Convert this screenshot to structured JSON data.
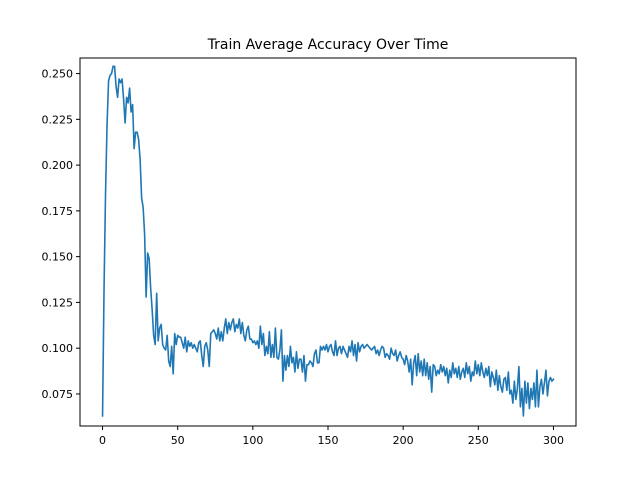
{
  "chart_data": {
    "type": "line",
    "title": "Train Average Accuracy Over Time",
    "xlabel": "",
    "ylabel": "",
    "xlim": [
      -15,
      315
    ],
    "ylim": [
      0.0575,
      0.2585
    ],
    "xticks": [
      0,
      50,
      100,
      150,
      200,
      250,
      300
    ],
    "xtick_labels": [
      "0",
      "50",
      "100",
      "150",
      "200",
      "250",
      "300"
    ],
    "yticks": [
      0.075,
      0.1,
      0.125,
      0.15,
      0.175,
      0.2,
      0.225,
      0.25
    ],
    "ytick_labels": [
      "0.075",
      "0.100",
      "0.125",
      "0.150",
      "0.175",
      "0.200",
      "0.225",
      "0.250"
    ],
    "grid": false,
    "series": [
      {
        "color": "#1f77b4",
        "x_start": 0,
        "x_step": 1,
        "values": [
          0.063,
          0.133,
          0.185,
          0.222,
          0.246,
          0.249,
          0.25,
          0.254,
          0.254,
          0.243,
          0.237,
          0.247,
          0.245,
          0.247,
          0.236,
          0.223,
          0.237,
          0.234,
          0.242,
          0.229,
          0.233,
          0.209,
          0.218,
          0.218,
          0.214,
          0.203,
          0.182,
          0.177,
          0.162,
          0.128,
          0.152,
          0.149,
          0.133,
          0.121,
          0.107,
          0.102,
          0.13,
          0.104,
          0.111,
          0.113,
          0.102,
          0.1,
          0.099,
          0.107,
          0.093,
          0.09,
          0.101,
          0.086,
          0.108,
          0.102,
          0.107,
          0.106,
          0.106,
          0.103,
          0.1,
          0.106,
          0.098,
          0.104,
          0.101,
          0.103,
          0.1,
          0.102,
          0.1,
          0.098,
          0.103,
          0.104,
          0.096,
          0.09,
          0.101,
          0.103,
          0.099,
          0.09,
          0.108,
          0.109,
          0.11,
          0.108,
          0.105,
          0.111,
          0.104,
          0.109,
          0.104,
          0.111,
          0.116,
          0.108,
          0.114,
          0.11,
          0.114,
          0.116,
          0.109,
          0.113,
          0.111,
          0.116,
          0.108,
          0.114,
          0.107,
          0.104,
          0.11,
          0.112,
          0.105,
          0.105,
          0.103,
          0.104,
          0.102,
          0.104,
          0.1,
          0.112,
          0.102,
          0.108,
          0.096,
          0.101,
          0.097,
          0.109,
          0.095,
          0.102,
          0.095,
          0.111,
          0.095,
          0.094,
          0.099,
          0.11,
          0.082,
          0.096,
          0.088,
          0.096,
          0.09,
          0.101,
          0.092,
          0.095,
          0.087,
          0.098,
          0.089,
          0.094,
          0.094,
          0.087,
          0.096,
          0.082,
          0.091,
          0.091,
          0.093,
          0.092,
          0.09,
          0.097,
          0.099,
          0.092,
          0.092,
          0.101,
          0.099,
          0.101,
          0.099,
          0.102,
          0.098,
          0.101,
          0.102,
          0.098,
          0.096,
          0.104,
          0.096,
          0.1,
          0.101,
          0.097,
          0.101,
          0.099,
          0.097,
          0.095,
          0.101,
          0.098,
          0.104,
          0.096,
          0.102,
          0.093,
          0.103,
          0.098,
          0.101,
          0.102,
          0.1,
          0.101,
          0.102,
          0.101,
          0.1,
          0.099,
          0.1,
          0.101,
          0.097,
          0.099,
          0.096,
          0.099,
          0.101,
          0.1,
          0.095,
          0.097,
          0.096,
          0.094,
          0.1,
          0.097,
          0.096,
          0.099,
          0.093,
          0.096,
          0.098,
          0.095,
          0.094,
          0.091,
          0.096,
          0.093,
          0.087,
          0.094,
          0.08,
          0.092,
          0.096,
          0.085,
          0.097,
          0.087,
          0.093,
          0.085,
          0.094,
          0.085,
          0.092,
          0.083,
          0.09,
          0.076,
          0.091,
          0.09,
          0.085,
          0.088,
          0.086,
          0.091,
          0.087,
          0.09,
          0.085,
          0.089,
          0.081,
          0.088,
          0.084,
          0.092,
          0.086,
          0.089,
          0.084,
          0.09,
          0.083,
          0.087,
          0.089,
          0.084,
          0.092,
          0.086,
          0.09,
          0.082,
          0.087,
          0.085,
          0.093,
          0.086,
          0.091,
          0.085,
          0.092,
          0.087,
          0.084,
          0.089,
          0.085,
          0.09,
          0.079,
          0.087,
          0.084,
          0.08,
          0.088,
          0.077,
          0.085,
          0.079,
          0.076,
          0.083,
          0.084,
          0.077,
          0.087,
          0.075,
          0.077,
          0.07,
          0.082,
          0.072,
          0.078,
          0.09,
          0.068,
          0.078,
          0.063,
          0.082,
          0.07,
          0.081,
          0.067,
          0.078,
          0.072,
          0.081,
          0.068,
          0.088,
          0.068,
          0.079,
          0.083,
          0.075,
          0.081,
          0.088,
          0.074,
          0.082,
          0.084,
          0.082,
          0.083
        ]
      }
    ]
  }
}
